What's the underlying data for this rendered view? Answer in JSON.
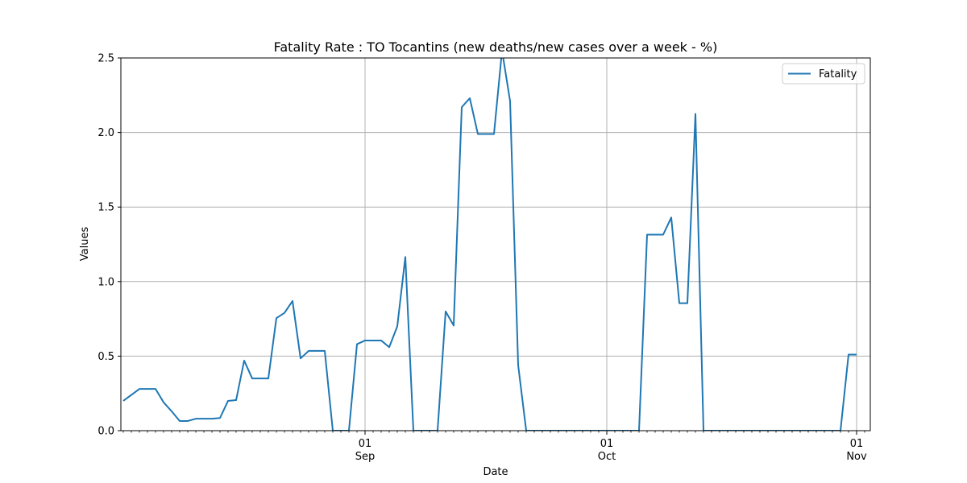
{
  "chart_data": {
    "type": "line",
    "title": "Fatality Rate : TO Tocantins (new deaths/new cases over a week - %)",
    "xlabel": "Date",
    "ylabel": "Values",
    "ylim": [
      0,
      2.5
    ],
    "xlim": [
      "2020-08-01",
      "2020-11-01"
    ],
    "yticks": [
      "0.0",
      "0.5",
      "1.0",
      "1.5",
      "2.0",
      "2.5"
    ],
    "xticks": [
      {
        "date": "2020-09-01",
        "day": "01",
        "month": "Sep"
      },
      {
        "date": "2020-10-01",
        "day": "01",
        "month": "Oct"
      },
      {
        "date": "2020-11-01",
        "day": "01",
        "month": "Nov"
      }
    ],
    "grid": true,
    "legend_position": "top-right",
    "series": [
      {
        "name": "Fatality",
        "color": "#1f77b4",
        "points": [
          [
            "2020-08-02",
            0.2
          ],
          [
            "2020-08-03",
            0.24
          ],
          [
            "2020-08-04",
            0.28
          ],
          [
            "2020-08-05",
            0.28
          ],
          [
            "2020-08-06",
            0.28
          ],
          [
            "2020-08-07",
            0.19
          ],
          [
            "2020-08-08",
            0.13
          ],
          [
            "2020-08-09",
            0.065
          ],
          [
            "2020-08-10",
            0.065
          ],
          [
            "2020-08-11",
            0.08
          ],
          [
            "2020-08-12",
            0.08
          ],
          [
            "2020-08-13",
            0.08
          ],
          [
            "2020-08-14",
            0.085
          ],
          [
            "2020-08-15",
            0.2
          ],
          [
            "2020-08-16",
            0.205
          ],
          [
            "2020-08-17",
            0.47
          ],
          [
            "2020-08-18",
            0.35
          ],
          [
            "2020-08-19",
            0.35
          ],
          [
            "2020-08-20",
            0.35
          ],
          [
            "2020-08-21",
            0.755
          ],
          [
            "2020-08-22",
            0.79
          ],
          [
            "2020-08-23",
            0.87
          ],
          [
            "2020-08-24",
            0.485
          ],
          [
            "2020-08-25",
            0.535
          ],
          [
            "2020-08-26",
            0.535
          ],
          [
            "2020-08-27",
            0.535
          ],
          [
            "2020-08-28",
            0.0
          ],
          [
            "2020-08-29",
            0.0
          ],
          [
            "2020-08-30",
            0.0
          ],
          [
            "2020-08-31",
            0.58
          ],
          [
            "2020-09-01",
            0.605
          ],
          [
            "2020-09-02",
            0.605
          ],
          [
            "2020-09-03",
            0.605
          ],
          [
            "2020-09-04",
            0.56
          ],
          [
            "2020-09-05",
            0.7
          ],
          [
            "2020-09-06",
            1.165
          ],
          [
            "2020-09-07",
            0.0
          ],
          [
            "2020-09-08",
            0.0
          ],
          [
            "2020-09-09",
            0.0
          ],
          [
            "2020-09-10",
            0.0
          ],
          [
            "2020-09-11",
            0.8
          ],
          [
            "2020-09-12",
            0.705
          ],
          [
            "2020-09-13",
            2.17
          ],
          [
            "2020-09-14",
            2.23
          ],
          [
            "2020-09-15",
            1.99
          ],
          [
            "2020-09-16",
            1.99
          ],
          [
            "2020-09-17",
            1.99
          ],
          [
            "2020-09-18",
            2.55
          ],
          [
            "2020-09-19",
            2.21
          ],
          [
            "2020-09-20",
            0.44
          ],
          [
            "2020-09-21",
            0.0
          ],
          [
            "2020-09-22",
            0.0
          ],
          [
            "2020-09-23",
            0.0
          ],
          [
            "2020-09-24",
            0.0
          ],
          [
            "2020-09-25",
            0.0
          ],
          [
            "2020-09-26",
            0.0
          ],
          [
            "2020-09-27",
            0.0
          ],
          [
            "2020-09-28",
            0.0
          ],
          [
            "2020-09-29",
            0.0
          ],
          [
            "2020-09-30",
            0.0
          ],
          [
            "2020-10-01",
            0.0
          ],
          [
            "2020-10-02",
            0.0
          ],
          [
            "2020-10-03",
            0.0
          ],
          [
            "2020-10-04",
            0.0
          ],
          [
            "2020-10-05",
            0.0
          ],
          [
            "2020-10-06",
            1.315
          ],
          [
            "2020-10-07",
            1.315
          ],
          [
            "2020-10-08",
            1.315
          ],
          [
            "2020-10-09",
            1.43
          ],
          [
            "2020-10-10",
            0.855
          ],
          [
            "2020-10-11",
            0.855
          ],
          [
            "2020-10-12",
            2.125
          ],
          [
            "2020-10-13",
            0.0
          ],
          [
            "2020-10-14",
            0.0
          ],
          [
            "2020-10-15",
            0.0
          ],
          [
            "2020-10-16",
            0.0
          ],
          [
            "2020-10-17",
            0.0
          ],
          [
            "2020-10-18",
            0.0
          ],
          [
            "2020-10-19",
            0.0
          ],
          [
            "2020-10-20",
            0.0
          ],
          [
            "2020-10-21",
            0.0
          ],
          [
            "2020-10-22",
            0.0
          ],
          [
            "2020-10-23",
            0.0
          ],
          [
            "2020-10-24",
            0.0
          ],
          [
            "2020-10-25",
            0.0
          ],
          [
            "2020-10-26",
            0.0
          ],
          [
            "2020-10-27",
            0.0
          ],
          [
            "2020-10-28",
            0.0
          ],
          [
            "2020-10-29",
            0.0
          ],
          [
            "2020-10-30",
            0.0
          ],
          [
            "2020-10-31",
            0.51
          ],
          [
            "2020-11-01",
            0.51
          ]
        ]
      }
    ]
  }
}
